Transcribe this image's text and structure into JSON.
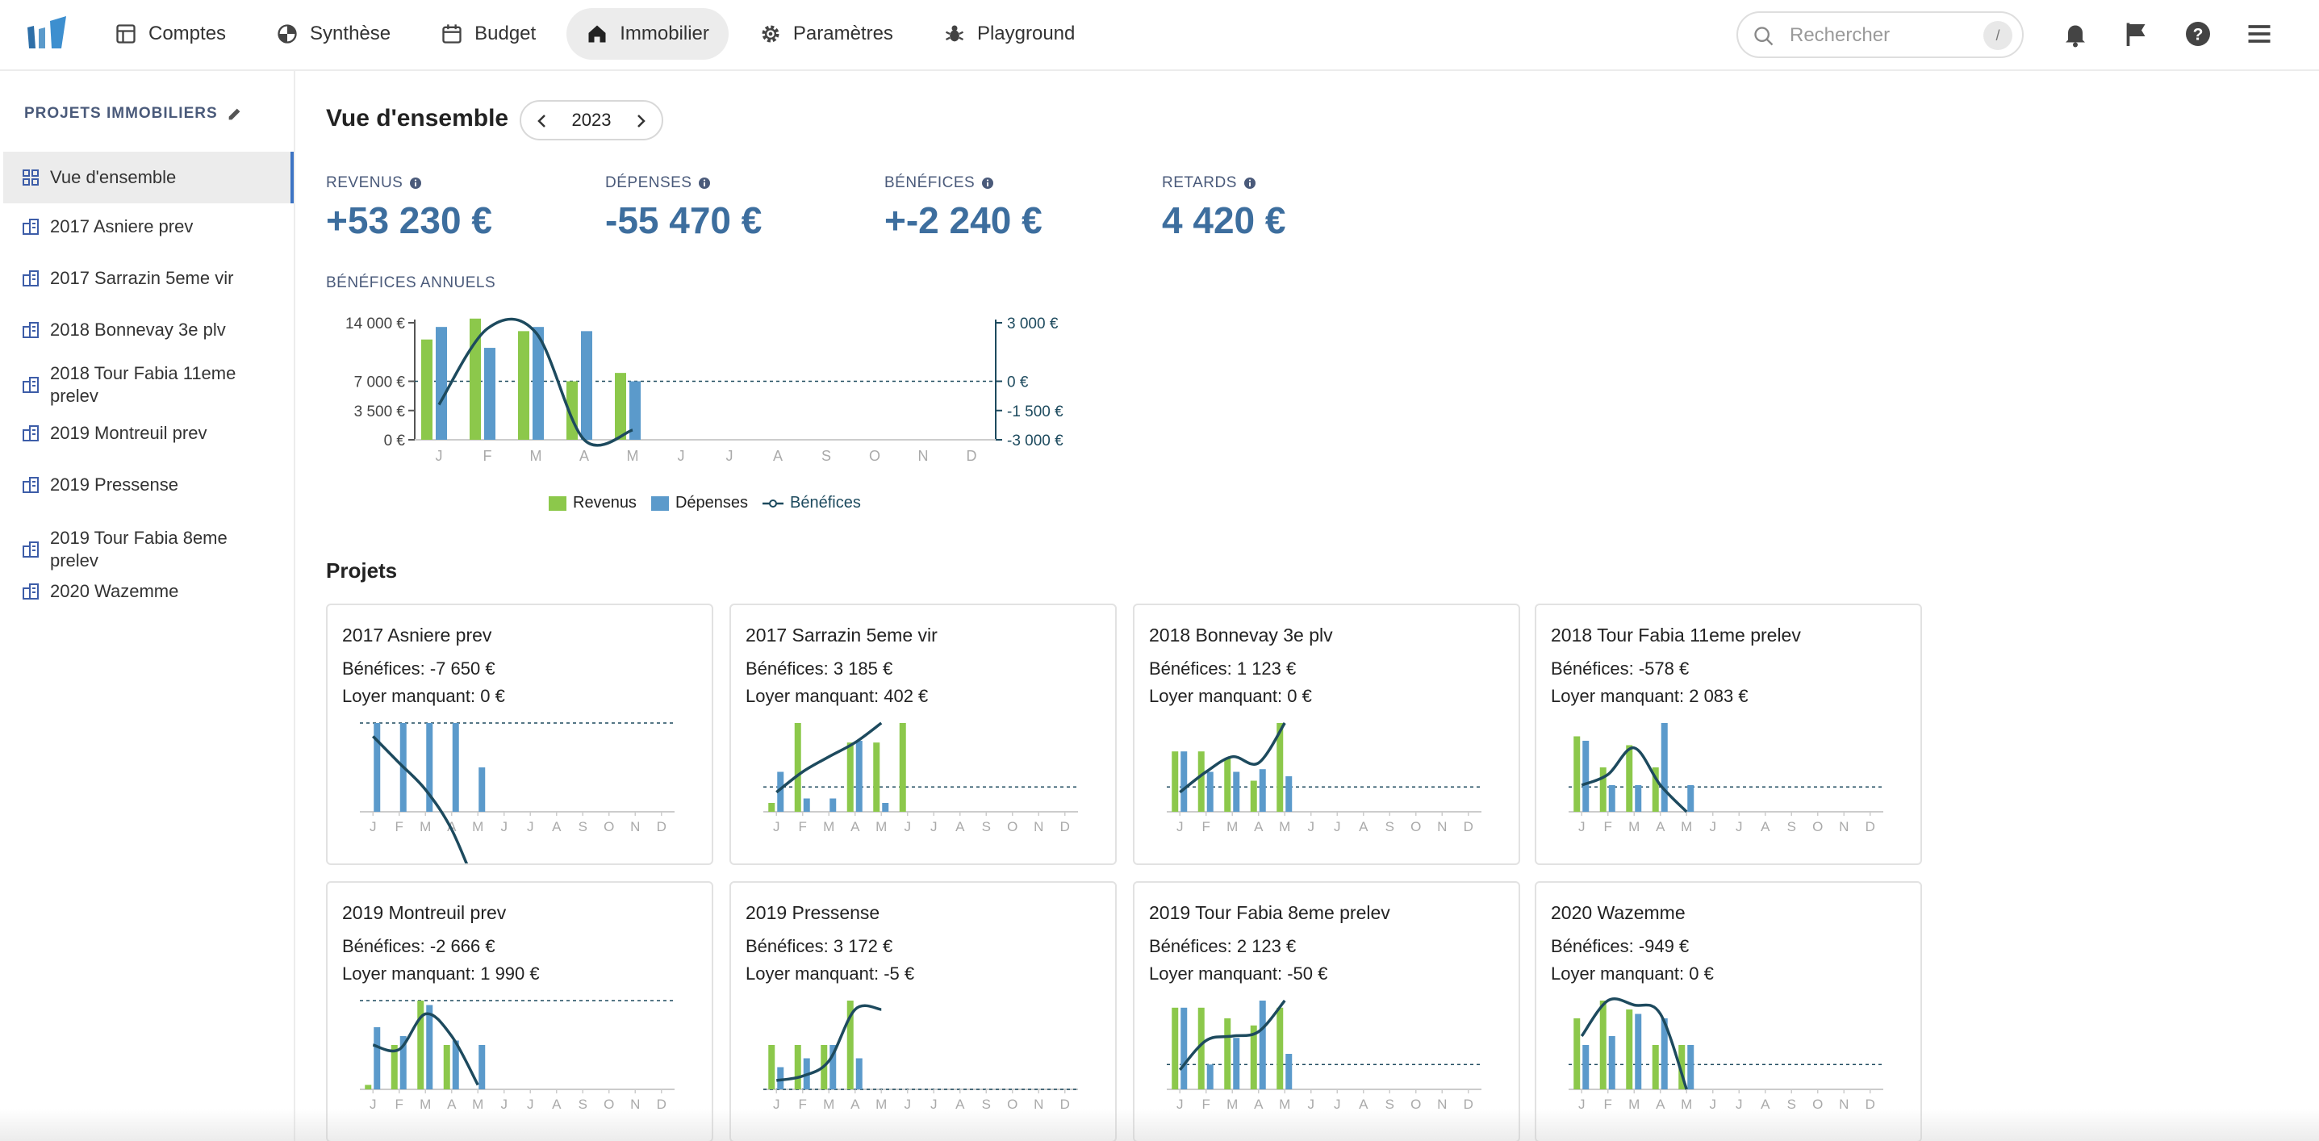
{
  "colors": {
    "revenue": "#8cc84b",
    "expense": "#5b9acb",
    "profit": "#1d4a5e",
    "accent": "#3d74c4"
  },
  "nav": {
    "items": [
      {
        "label": "Comptes",
        "icon": "table-icon"
      },
      {
        "label": "Synthèse",
        "icon": "pie-chart-icon"
      },
      {
        "label": "Budget",
        "icon": "calendar-icon"
      },
      {
        "label": "Immobilier",
        "icon": "home-icon"
      },
      {
        "label": "Paramètres",
        "icon": "gear-icon"
      },
      {
        "label": "Playground",
        "icon": "bug-icon"
      }
    ],
    "active": "Immobilier",
    "search": {
      "placeholder": "Rechercher",
      "shortcut": "/"
    }
  },
  "sidebar": {
    "title": "PROJETS IMMOBILIERS",
    "items": [
      {
        "label": "Vue d'ensemble",
        "icon": "grid-icon"
      },
      {
        "label": "2017 Asniere prev",
        "icon": "building-icon"
      },
      {
        "label": "2017 Sarrazin 5eme vir",
        "icon": "building-icon"
      },
      {
        "label": "2018 Bonnevay 3e plv",
        "icon": "building-icon"
      },
      {
        "label": "2018 Tour Fabia 11eme prelev",
        "icon": "building-icon"
      },
      {
        "label": "2019 Montreuil prev",
        "icon": "building-icon"
      },
      {
        "label": "2019 Pressense",
        "icon": "building-icon"
      },
      {
        "label": "2019 Tour Fabia 8eme prelev",
        "icon": "building-icon"
      },
      {
        "label": "2020 Wazemme",
        "icon": "building-icon"
      }
    ]
  },
  "overview": {
    "title": "Vue d'ensemble",
    "year": "2023",
    "stats": [
      {
        "label": "REVENUS",
        "value": "+53 230 €"
      },
      {
        "label": "DÉPENSES",
        "value": "-55 470 €"
      },
      {
        "label": "BÉNÉFICES",
        "value": "+-2 240 €"
      },
      {
        "label": "RETARDS",
        "value": "4 420 €"
      }
    ],
    "chart_title": "BÉNÉFICES ANNUELS",
    "projects_title": "Projets"
  },
  "chart_data": [
    {
      "type": "bar",
      "categories": [
        "J",
        "F",
        "M",
        "A",
        "M",
        "J",
        "J",
        "A",
        "S",
        "O",
        "N",
        "D"
      ],
      "left_ticks": [
        "14 000 €",
        "7 000 €",
        "3 500 €",
        "0 €"
      ],
      "right_ticks": [
        "3 000 €",
        "0 €",
        "-1 500 €",
        "-3 000 €"
      ],
      "ylim": [
        0,
        14000
      ],
      "y2lim": [
        -3000,
        3000
      ],
      "series": [
        {
          "name": "Revenus",
          "kind": "bar",
          "values": [
            12000,
            14500,
            13000,
            7000,
            8000,
            null,
            null,
            null,
            null,
            null,
            null,
            null
          ]
        },
        {
          "name": "Dépenses",
          "kind": "bar",
          "values": [
            13500,
            11000,
            13500,
            13000,
            7000,
            null,
            null,
            null,
            null,
            null,
            null,
            null
          ]
        },
        {
          "name": "Bénéfices",
          "kind": "line",
          "axis": "right",
          "values": [
            -1200,
            2700,
            2500,
            -3000,
            -2500,
            null,
            null,
            null,
            null,
            null,
            null,
            null
          ]
        }
      ],
      "legend": "bottom"
    }
  ],
  "projects": [
    {
      "name": "2017 Asniere prev",
      "profit_label": "Bénéfices: -7 650 €",
      "missing_label": "Loyer manquant: 0 €",
      "revenue": [
        0,
        0,
        0,
        0,
        0,
        0,
        0,
        0,
        0,
        0,
        0,
        0
      ],
      "expense": [
        1,
        1,
        1,
        1,
        0.5,
        0,
        0,
        0,
        0,
        0,
        0,
        0
      ],
      "line": [
        0.85,
        0.55,
        0.25,
        -0.2,
        -0.9
      ],
      "zero": 1.0
    },
    {
      "name": "2017 Sarrazin 5eme vir",
      "profit_label": "Bénéfices: 3 185 €",
      "missing_label": "Loyer manquant: 402 €",
      "revenue": [
        0.1,
        1,
        0,
        0.78,
        0.78,
        1,
        0,
        0,
        0,
        0,
        0,
        0
      ],
      "expense": [
        0.45,
        0.15,
        0.15,
        0.8,
        0.1,
        0,
        0,
        0,
        0,
        0,
        0,
        0
      ],
      "line": [
        0.22,
        0.45,
        0.62,
        0.78,
        1.0
      ],
      "zero": 0.28
    },
    {
      "name": "2018 Bonnevay 3e plv",
      "profit_label": "Bénéfices: 1 123 €",
      "missing_label": "Loyer manquant: 0 €",
      "revenue": [
        0.68,
        0.68,
        0.6,
        0.35,
        1,
        0,
        0,
        0,
        0,
        0,
        0,
        0
      ],
      "expense": [
        0.68,
        0.45,
        0.45,
        0.48,
        0.4,
        0,
        0,
        0,
        0,
        0,
        0,
        0
      ],
      "line": [
        0.22,
        0.45,
        0.62,
        0.55,
        1.0
      ],
      "zero": 0.28
    },
    {
      "name": "2018 Tour Fabia 11eme prelev",
      "profit_label": "Bénéfices: -578 €",
      "missing_label": "Loyer manquant: 2 083 €",
      "revenue": [
        0.85,
        0.5,
        0.75,
        0.5,
        0,
        0,
        0,
        0,
        0,
        0,
        0,
        0
      ],
      "expense": [
        0.8,
        0.3,
        0.3,
        1,
        0.3,
        0,
        0,
        0,
        0,
        0,
        0,
        0
      ],
      "line": [
        0.3,
        0.42,
        0.72,
        0.3,
        0.0
      ],
      "zero": 0.28
    },
    {
      "name": "2019 Montreuil prev",
      "profit_label": "Bénéfices: -2 666 €",
      "missing_label": "Loyer manquant: 1 990 €",
      "revenue": [
        0.05,
        0.5,
        1,
        0.5,
        0,
        0,
        0,
        0,
        0,
        0,
        0,
        0
      ],
      "expense": [
        0.7,
        0.6,
        0.95,
        0.55,
        0.5,
        0,
        0,
        0,
        0,
        0,
        0,
        0
      ],
      "line": [
        0.5,
        0.45,
        0.85,
        0.6,
        0.05
      ],
      "zero": 1.0
    },
    {
      "name": "2019 Pressense",
      "profit_label": "Bénéfices: 3 172 €",
      "missing_label": "Loyer manquant: -5 €",
      "revenue": [
        0.5,
        0.5,
        0.5,
        1,
        0,
        0,
        0,
        0,
        0,
        0,
        0,
        0
      ],
      "expense": [
        0.25,
        0.35,
        0.5,
        0.35,
        0,
        0,
        0,
        0,
        0,
        0,
        0,
        0
      ],
      "line": [
        0.1,
        0.15,
        0.32,
        0.9,
        0.9
      ],
      "zero": 0.0
    },
    {
      "name": "2019 Tour Fabia 8eme prelev",
      "profit_label": "Bénéfices: 2 123 €",
      "missing_label": "Loyer manquant: -50 €",
      "revenue": [
        0.92,
        0.92,
        0.8,
        0.72,
        0.92,
        0,
        0,
        0,
        0,
        0,
        0,
        0
      ],
      "expense": [
        0.92,
        0.28,
        0.58,
        1,
        0.4,
        0,
        0,
        0,
        0,
        0,
        0,
        0
      ],
      "line": [
        0.22,
        0.55,
        0.6,
        0.65,
        1.0
      ],
      "zero": 0.28
    },
    {
      "name": "2020 Wazemme",
      "profit_label": "Bénéfices: -949 €",
      "missing_label": "Loyer manquant: 0 €",
      "revenue": [
        0.8,
        1,
        0.9,
        0.5,
        0.5,
        0,
        0,
        0,
        0,
        0,
        0,
        0
      ],
      "expense": [
        0.5,
        0.6,
        0.85,
        0.8,
        0.5,
        0,
        0,
        0,
        0,
        0,
        0,
        0
      ],
      "line": [
        0.6,
        1.0,
        0.95,
        0.85,
        0.0
      ],
      "zero": 0.28
    }
  ],
  "months": [
    "J",
    "F",
    "M",
    "A",
    "M",
    "J",
    "J",
    "A",
    "S",
    "O",
    "N",
    "D"
  ]
}
